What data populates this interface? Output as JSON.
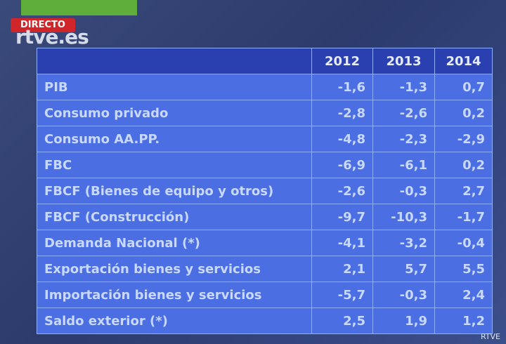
{
  "overlay": {
    "badge": "DIRECTO",
    "logo": "rtve.es",
    "watermark": "RTVE"
  },
  "table": {
    "columns": [
      "2012",
      "2013",
      "2014"
    ],
    "rows": [
      [
        "PIB",
        "-1,6",
        "-1,3",
        "0,7"
      ],
      [
        "Consumo privado",
        "-2,8",
        "-2,6",
        "0,2"
      ],
      [
        "Consumo  AA.PP.",
        "-4,8",
        "-2,3",
        "-2,9"
      ],
      [
        "FBC",
        "-6,9",
        "-6,1",
        "0,2"
      ],
      [
        "FBCF (Bienes de equipo y otros)",
        "-2,6",
        "-0,3",
        "2,7"
      ],
      [
        "FBCF (Construcción)",
        "-9,7",
        "-10,3",
        "-1,7"
      ],
      [
        "Demanda Nacional  (*)",
        "-4,1",
        "-3,2",
        "-0,4"
      ],
      [
        "Exportación bienes y servicios",
        "2,1",
        "5,7",
        "5,5"
      ],
      [
        "Importación bienes y servicios",
        "-5,7",
        "-0,3",
        "2,4"
      ],
      [
        "Saldo exterior  (*)",
        "2,5",
        "1,9",
        "1,2"
      ]
    ]
  }
}
